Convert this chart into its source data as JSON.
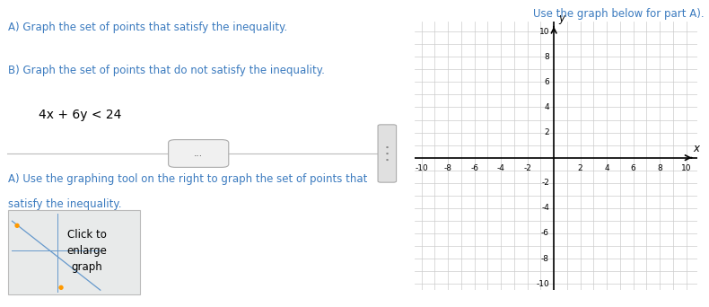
{
  "fig_width": 7.9,
  "fig_height": 3.42,
  "dpi": 100,
  "bg_color": "#ffffff",
  "left_panel": {
    "title_a": "A) Graph the set of points that satisfy the inequality.",
    "title_b": "B) Graph the set of points that do not satisfy the inequality.",
    "inequality": "4x + 6y < 24",
    "answer_a_line1": "A) Use the graphing tool on the right to graph the set of points that",
    "answer_a_line2": "satisfy the inequality.",
    "teal_color": "#3a7abf",
    "black_color": "#000000",
    "sep_color": "#bbbbbb",
    "btn_bg": "#f0f0f0",
    "btn_border": "#aaaaaa",
    "thumb_bg": "#e8eaea",
    "thumb_border": "#bbbbbb",
    "scroll_bg": "#e0e0e0",
    "scroll_border": "#aaaaaa",
    "scroll_dot": "#888888",
    "diag_color": "#6699cc",
    "dot_color": "#ff9900"
  },
  "right_panel": {
    "title": "Use the graph below for part A).",
    "title_color": "#3a7abf",
    "grid_color": "#cccccc",
    "grid_lw": 0.5,
    "axis_color": "#000000",
    "axis_lw": 1.2,
    "xlim": [
      -10.5,
      10.8
    ],
    "ylim": [
      -10.5,
      10.8
    ],
    "xticks": [
      -10,
      -8,
      -6,
      -4,
      -2,
      2,
      4,
      6,
      8,
      10
    ],
    "yticks": [
      -10,
      -8,
      -6,
      -4,
      -2,
      2,
      4,
      6,
      8,
      10
    ],
    "xlabel": "x",
    "ylabel": "y",
    "tick_fontsize": 6.5,
    "label_fontsize": 8.5
  }
}
